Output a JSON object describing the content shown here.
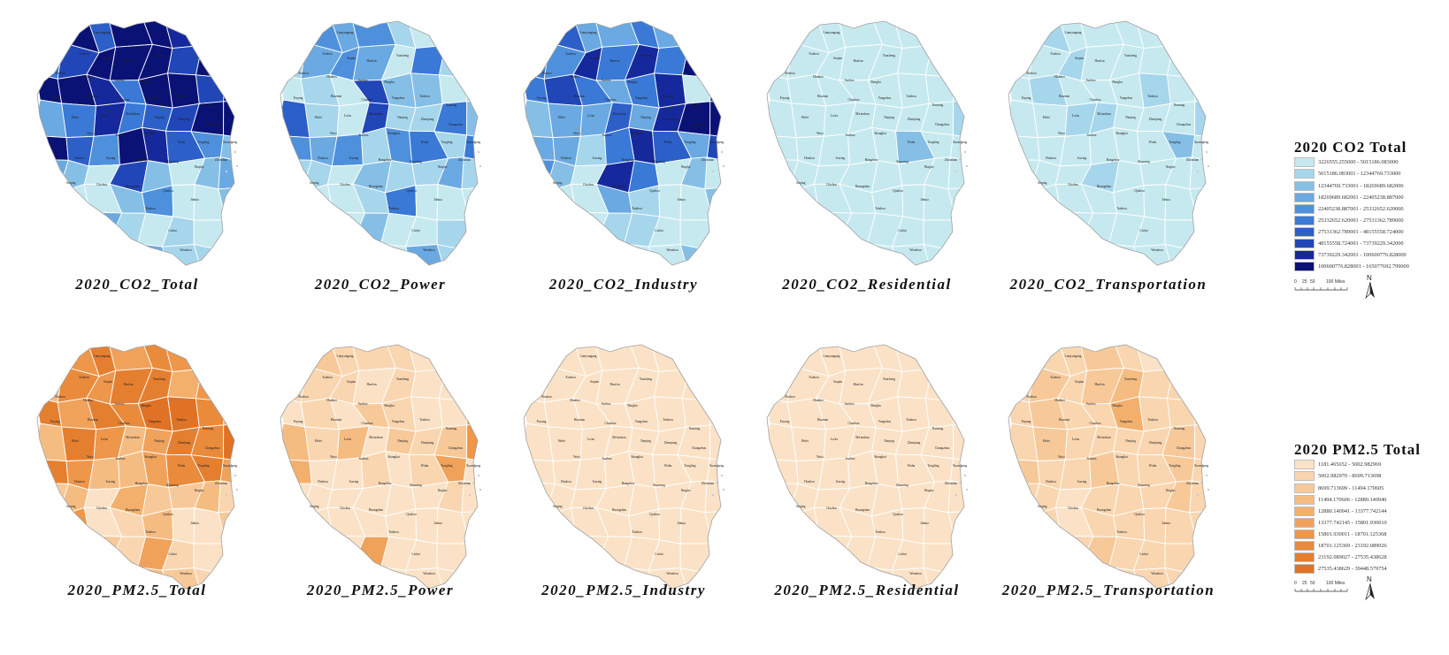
{
  "maps": [
    {
      "caption": "2020_CO2_Total",
      "family": "co2",
      "levels": [
        8,
        9,
        6,
        9,
        9,
        8,
        6,
        9,
        5,
        7,
        9,
        9,
        9,
        7,
        9,
        3,
        9,
        9,
        8,
        5,
        9,
        9,
        7,
        9,
        3,
        5,
        8,
        5,
        6,
        7,
        9,
        9,
        9,
        6,
        4,
        9,
        8,
        6,
        4,
        2,
        3,
        2,
        0,
        7,
        2,
        0,
        2,
        3,
        4,
        0,
        0,
        2,
        4,
        0,
        0,
        2,
        0,
        0,
        3,
        1,
        0,
        1,
        0,
        0,
        0,
        0,
        0,
        4,
        3,
        1,
        1,
        0,
        0,
        2,
        0
      ]
    },
    {
      "caption": "2020_CO2_Power",
      "family": "co2",
      "levels": [
        9,
        4,
        3,
        4,
        1,
        0,
        0,
        0,
        1,
        3,
        4,
        3,
        0,
        5,
        1,
        1,
        0,
        1,
        0,
        7,
        2,
        2,
        0,
        1,
        6,
        1,
        0,
        7,
        1,
        1,
        5,
        2,
        4,
        3,
        4,
        1,
        4,
        5,
        1,
        5,
        1,
        1,
        0,
        2,
        1,
        1,
        3,
        1,
        2,
        0,
        0,
        1,
        5,
        0,
        0,
        0,
        0,
        1,
        0,
        2,
        0,
        0,
        1,
        0,
        3,
        1,
        1,
        5,
        0,
        3,
        1,
        0,
        1,
        0,
        0
      ]
    },
    {
      "caption": "2020_CO2_Industry",
      "family": "co2",
      "levels": [
        9,
        6,
        3,
        3,
        5,
        3,
        0,
        5,
        5,
        4,
        8,
        5,
        8,
        5,
        9,
        2,
        5,
        7,
        5,
        3,
        5,
        8,
        0,
        8,
        2,
        3,
        3,
        6,
        3,
        8,
        9,
        9,
        3,
        3,
        1,
        5,
        8,
        6,
        3,
        7,
        4,
        2,
        0,
        8,
        5,
        0,
        2,
        0,
        5,
        0,
        0,
        3,
        1,
        0,
        0,
        2,
        0,
        1,
        0,
        1,
        1,
        0,
        0,
        0,
        0,
        1,
        0,
        3,
        0,
        0,
        2,
        1,
        0,
        0,
        2
      ]
    },
    {
      "caption": "2020_CO2_Residential",
      "family": "co2",
      "levels": [
        0,
        0,
        0,
        0,
        0,
        0,
        0,
        0,
        0,
        0,
        0,
        0,
        0,
        0,
        0,
        0,
        0,
        0,
        0,
        0,
        0,
        0,
        0,
        0,
        0,
        0,
        0,
        0,
        0,
        0,
        0,
        1,
        0,
        0,
        0,
        0,
        0,
        2,
        0,
        0,
        0,
        0,
        0,
        0,
        0,
        0,
        0,
        0,
        0,
        0,
        0,
        0,
        0,
        0,
        0,
        0,
        0,
        0,
        0,
        0,
        0,
        0,
        0,
        0,
        0,
        0,
        0,
        0,
        0,
        0,
        0,
        0,
        0,
        0,
        0
      ]
    },
    {
      "caption": "2020_CO2_Transportation",
      "family": "co2",
      "levels": [
        0,
        1,
        0,
        0,
        0,
        0,
        0,
        0,
        0,
        0,
        1,
        0,
        0,
        0,
        0,
        0,
        0,
        1,
        0,
        0,
        0,
        1,
        0,
        0,
        0,
        0,
        1,
        1,
        0,
        0,
        0,
        1,
        0,
        0,
        0,
        0,
        0,
        0,
        2,
        0,
        0,
        0,
        0,
        1,
        0,
        0,
        0,
        0,
        0,
        0,
        0,
        0,
        0,
        0,
        0,
        0,
        0,
        0,
        0,
        0,
        0,
        0,
        0,
        0,
        0,
        0,
        0,
        0,
        0,
        0,
        0,
        0,
        0,
        0,
        0
      ]
    },
    {
      "caption": "2020_PM2.5_Total",
      "family": "pm",
      "levels": [
        9,
        6,
        8,
        5,
        7,
        6,
        5,
        7,
        3,
        7,
        6,
        8,
        8,
        4,
        6,
        3,
        8,
        5,
        8,
        7,
        9,
        9,
        7,
        4,
        3,
        8,
        6,
        3,
        5,
        8,
        7,
        9,
        8,
        6,
        3,
        3,
        5,
        7,
        8,
        5,
        2,
        3,
        0,
        4,
        2,
        2,
        3,
        1,
        4,
        6,
        0,
        1,
        3,
        0,
        0,
        2,
        1,
        1,
        2,
        1,
        5,
        1,
        0,
        0,
        3,
        1,
        1,
        4,
        3,
        2,
        1,
        1,
        1,
        1,
        1
      ]
    },
    {
      "caption": "2020_PM2.5_Power",
      "family": "pm",
      "levels": [
        5,
        2,
        1,
        1,
        1,
        0,
        2,
        0,
        1,
        1,
        1,
        0,
        1,
        0,
        0,
        1,
        0,
        1,
        0,
        2,
        1,
        0,
        0,
        5,
        3,
        1,
        3,
        0,
        2,
        1,
        2,
        6,
        4,
        0,
        0,
        1,
        0,
        1,
        5,
        0,
        0,
        0,
        0,
        0,
        0,
        0,
        1,
        0,
        2,
        0,
        0,
        0,
        0,
        0,
        0,
        0,
        0,
        0,
        0,
        5,
        0,
        0,
        0,
        0,
        0,
        0,
        2,
        0,
        0,
        0,
        0,
        0,
        0,
        0,
        0
      ]
    },
    {
      "caption": "2020_PM2.5_Industry",
      "family": "pm",
      "levels": [
        0,
        0,
        0,
        0,
        0,
        0,
        0,
        0,
        0,
        0,
        0,
        0,
        0,
        0,
        0,
        0,
        0,
        0,
        0,
        0,
        0,
        0,
        0,
        0,
        0,
        0,
        0,
        0,
        0,
        0,
        0,
        0,
        0,
        0,
        0,
        0,
        0,
        0,
        0,
        0,
        0,
        0,
        0,
        0,
        0,
        0,
        0,
        0,
        0,
        0,
        0,
        0,
        0,
        0,
        0,
        0,
        0,
        0,
        0,
        0,
        0,
        0,
        0,
        0,
        0,
        0,
        0,
        0,
        0,
        0,
        0,
        0,
        0,
        0,
        0
      ]
    },
    {
      "caption": "2020_PM2.5_Residential",
      "family": "pm",
      "levels": [
        0,
        0,
        0,
        0,
        0,
        0,
        0,
        0,
        0,
        0,
        0,
        0,
        0,
        0,
        0,
        0,
        0,
        0,
        0,
        0,
        0,
        0,
        0,
        0,
        0,
        0,
        0,
        0,
        0,
        0,
        0,
        0,
        0,
        0,
        0,
        0,
        0,
        0,
        0,
        0,
        0,
        0,
        0,
        0,
        0,
        0,
        0,
        0,
        0,
        0,
        0,
        0,
        0,
        0,
        0,
        0,
        0,
        0,
        0,
        0,
        0,
        0,
        0,
        0,
        0,
        0,
        0,
        0,
        0,
        0,
        0,
        0,
        0,
        0,
        0
      ]
    },
    {
      "caption": "2020_PM2.5_Transportation",
      "family": "pm",
      "levels": [
        3,
        1,
        1,
        2,
        1,
        0,
        1,
        0,
        1,
        2,
        1,
        2,
        3,
        1,
        1,
        0,
        1,
        2,
        1,
        1,
        4,
        1,
        1,
        2,
        1,
        2,
        1,
        1,
        1,
        1,
        2,
        1,
        2,
        1,
        1,
        2,
        1,
        1,
        2,
        1,
        1,
        1,
        0,
        1,
        1,
        1,
        2,
        1,
        1,
        1,
        0,
        1,
        1,
        1,
        1,
        1,
        1,
        1,
        1,
        2,
        1,
        1,
        1,
        0,
        1,
        1,
        1,
        2,
        1,
        1,
        1,
        1,
        1,
        1,
        1
      ]
    }
  ],
  "city_labels": [
    "Lianyungang",
    "Xuzhou",
    "Suqian",
    "Huai'an",
    "Yancheng",
    "Bozhou",
    "Huaibei",
    "Suzhou",
    "Bengbu",
    "Fuyang",
    "Huainan",
    "Chuzhou",
    "Yangzhou",
    "Taizhou",
    "Nantong",
    "Hefei",
    "Lu'an",
    "Ma'anshan",
    "Nanjing",
    "Zhenjiang",
    "Changzhou",
    "Wuxi",
    "Suzhou",
    "Shanghai",
    "Wuhu",
    "Tongling",
    "Xuancheng",
    "Huzhou",
    "Jiaxing",
    "Hangzhou",
    "Shaoxing",
    "Ningbo",
    "Zhoushan",
    "Anqing",
    "Chizhou",
    "Huangshan",
    "Quzhou",
    "Jinhua",
    "Taizhou",
    "Lishui",
    "Wenzhou"
  ],
  "legends": [
    {
      "title": "2020 CO2 Total",
      "family": "co2",
      "ranges": [
        "3226555.255000 - 5015186.083000",
        "5015186.083001 - 12344769.733000",
        "12344769.733001 - 18269689.682000",
        "18269689.682001 - 22405238.887000",
        "22405238.887001 - 25332652.620000",
        "25332652.620001 - 27531362.789000",
        "27531362.789001 - 48155558.724000",
        "48155558.724001 - 73739229.342000",
        "73739229.342001 - 100600776.828000",
        "100600776.828001 - 165077692.799000"
      ]
    },
    {
      "title": "2020 PM2.5 Total",
      "family": "pm",
      "ranges": [
        "1181.465652 - 5002.982969",
        "5002.982970 - 8699.713698",
        "8699.713699 - 11494.170605",
        "11494.170606 - 12880.140940",
        "12880.140941 - 13377.742144",
        "13377.742145 - 15801.930010",
        "15801.930011 - 18701.125368",
        "18701.125369 - 23192.089026",
        "23192.089027 - 27535.438628",
        "27535.438629 - 39448.579754"
      ]
    }
  ],
  "scale": {
    "ticks": [
      "0",
      "25",
      "50",
      "100 Miles"
    ],
    "north": "N"
  },
  "colors": {
    "co2": [
      "#c6e9ef",
      "#a6d6ec",
      "#86bfe6",
      "#6aa9e1",
      "#4e90dc",
      "#3a79d6",
      "#2c5fc8",
      "#2146b8",
      "#15299c",
      "#0a1275"
    ],
    "pm": [
      "#fbe2c6",
      "#f9d6b0",
      "#f7c999",
      "#f5bc82",
      "#f3b06d",
      "#f0a25a",
      "#ee9649",
      "#ea8a3b",
      "#e57f30",
      "#df7225"
    ],
    "border": "#ffffff",
    "outline": "#a0a0a0"
  }
}
